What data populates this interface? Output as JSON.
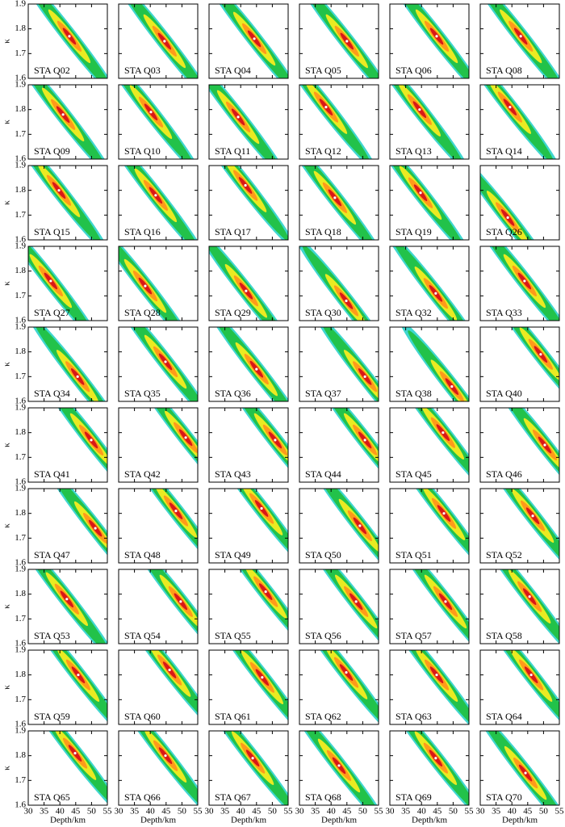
{
  "chart_data": {
    "type": "scatter",
    "xlabel": "Depth/km",
    "ylabel": "κ",
    "xlim": [
      30,
      55
    ],
    "ylim": [
      1.6,
      1.9
    ],
    "xticks": [
      30,
      35,
      40,
      45,
      50,
      55
    ],
    "yticks": [
      1.6,
      1.7,
      1.8,
      1.9
    ],
    "panels": [
      {
        "label": "STA Q02",
        "x": [
          43.0
        ],
        "y": [
          1.77
        ]
      },
      {
        "label": "STA Q03",
        "x": [
          44.5
        ],
        "y": [
          1.75
        ]
      },
      {
        "label": "STA Q04",
        "x": [
          44.3
        ],
        "y": [
          1.76
        ]
      },
      {
        "label": "STA Q05",
        "x": [
          45.0
        ],
        "y": [
          1.75
        ]
      },
      {
        "label": "STA Q06",
        "x": [
          44.8
        ],
        "y": [
          1.77
        ]
      },
      {
        "label": "STA Q08",
        "x": [
          42.8
        ],
        "y": [
          1.77
        ]
      },
      {
        "label": "STA Q09",
        "x": [
          41.0
        ],
        "y": [
          1.78
        ]
      },
      {
        "label": "STA Q10",
        "x": [
          40.2
        ],
        "y": [
          1.79
        ]
      },
      {
        "label": "STA Q11",
        "x": [
          39.2
        ],
        "y": [
          1.77
        ]
      },
      {
        "label": "STA Q12",
        "x": [
          38.4
        ],
        "y": [
          1.81
        ]
      },
      {
        "label": "STA Q13",
        "x": [
          39.4
        ],
        "y": [
          1.8
        ]
      },
      {
        "label": "STA Q14",
        "x": [
          39.4
        ],
        "y": [
          1.81
        ]
      },
      {
        "label": "STA Q15",
        "x": [
          39.7
        ],
        "y": [
          1.8
        ]
      },
      {
        "label": "STA Q16",
        "x": [
          41.7
        ],
        "y": [
          1.78
        ]
      },
      {
        "label": "STA Q17",
        "x": [
          41.5
        ],
        "y": [
          1.82
        ]
      },
      {
        "label": "STA Q18",
        "x": [
          41.2
        ],
        "y": [
          1.77
        ]
      },
      {
        "label": "STA Q19",
        "x": [
          39.7
        ],
        "y": [
          1.79
        ]
      },
      {
        "label": "STA Q26",
        "x": [
          38.7
        ],
        "y": [
          1.69
        ]
      },
      {
        "label": "STA Q27",
        "x": [
          37.1
        ],
        "y": [
          1.76
        ]
      },
      {
        "label": "STA Q28",
        "x": [
          38.4
        ],
        "y": [
          1.74
        ]
      },
      {
        "label": "STA Q29",
        "x": [
          41.7
        ],
        "y": [
          1.72
        ]
      },
      {
        "label": "STA Q30",
        "x": [
          44.8
        ],
        "y": [
          1.68
        ]
      },
      {
        "label": "STA Q32",
        "x": [
          44.5
        ],
        "y": [
          1.71
        ]
      },
      {
        "label": "STA Q33",
        "x": [
          44.0
        ],
        "y": [
          1.76
        ]
      },
      {
        "label": "STA Q34",
        "x": [
          45.6
        ],
        "y": [
          1.7
        ]
      },
      {
        "label": "STA Q35",
        "x": [
          44.8
        ],
        "y": [
          1.76
        ]
      },
      {
        "label": "STA Q36",
        "x": [
          45.0
        ],
        "y": [
          1.73
        ]
      },
      {
        "label": "STA Q37",
        "x": [
          50.7
        ],
        "y": [
          1.7
        ]
      },
      {
        "label": "STA Q38",
        "x": [
          49.6
        ],
        "y": [
          1.66
        ]
      },
      {
        "label": "STA Q40",
        "x": [
          49.1
        ],
        "y": [
          1.79
        ]
      },
      {
        "label": "STA Q41",
        "x": [
          49.9
        ],
        "y": [
          1.77
        ]
      },
      {
        "label": "STA Q42",
        "x": [
          51.2
        ],
        "y": [
          1.78
        ]
      },
      {
        "label": "STA Q43",
        "x": [
          50.9
        ],
        "y": [
          1.77
        ]
      },
      {
        "label": "STA Q44",
        "x": [
          50.7
        ],
        "y": [
          1.77
        ]
      },
      {
        "label": "STA Q45",
        "x": [
          46.8
        ],
        "y": [
          1.8
        ]
      },
      {
        "label": "STA Q46",
        "x": [
          50.4
        ],
        "y": [
          1.75
        ]
      },
      {
        "label": "STA Q47",
        "x": [
          51.2
        ],
        "y": [
          1.74
        ]
      },
      {
        "label": "STA Q48",
        "x": [
          48.1
        ],
        "y": [
          1.81
        ]
      },
      {
        "label": "STA Q49",
        "x": [
          46.6
        ],
        "y": [
          1.82
        ]
      },
      {
        "label": "STA Q50",
        "x": [
          49.1
        ],
        "y": [
          1.75
        ]
      },
      {
        "label": "STA Q51",
        "x": [
          47.1
        ],
        "y": [
          1.8
        ]
      },
      {
        "label": "STA Q52",
        "x": [
          46.6
        ],
        "y": [
          1.79
        ]
      },
      {
        "label": "STA Q53",
        "x": [
          42.2
        ],
        "y": [
          1.78
        ]
      },
      {
        "label": "STA Q54",
        "x": [
          49.6
        ],
        "y": [
          1.77
        ]
      },
      {
        "label": "STA Q55",
        "x": [
          47.9
        ],
        "y": [
          1.81
        ]
      },
      {
        "label": "STA Q56",
        "x": [
          47.9
        ],
        "y": [
          1.77
        ]
      },
      {
        "label": "STA Q57",
        "x": [
          47.6
        ],
        "y": [
          1.77
        ]
      },
      {
        "label": "STA Q58",
        "x": [
          45.6
        ],
        "y": [
          1.79
        ]
      },
      {
        "label": "STA Q59",
        "x": [
          45.8
        ],
        "y": [
          1.8
        ]
      },
      {
        "label": "STA Q60",
        "x": [
          46.1
        ],
        "y": [
          1.82
        ]
      },
      {
        "label": "STA Q61",
        "x": [
          46.8
        ],
        "y": [
          1.79
        ]
      },
      {
        "label": "STA Q62",
        "x": [
          44.8
        ],
        "y": [
          1.81
        ]
      },
      {
        "label": "STA Q63",
        "x": [
          44.8
        ],
        "y": [
          1.8
        ]
      },
      {
        "label": "STA Q64",
        "x": [
          46.1
        ],
        "y": [
          1.8
        ]
      },
      {
        "label": "STA Q65",
        "x": [
          44.8
        ],
        "y": [
          1.81
        ]
      },
      {
        "label": "STA Q66",
        "x": [
          44.8
        ],
        "y": [
          1.8
        ]
      },
      {
        "label": "STA Q67",
        "x": [
          43.8
        ],
        "y": [
          1.79
        ]
      },
      {
        "label": "STA Q68",
        "x": [
          42.5
        ],
        "y": [
          1.76
        ]
      },
      {
        "label": "STA Q69",
        "x": [
          44.5
        ],
        "y": [
          1.79
        ]
      },
      {
        "label": "STA Q70",
        "x": [
          44.3
        ],
        "y": [
          1.73
        ]
      }
    ]
  }
}
